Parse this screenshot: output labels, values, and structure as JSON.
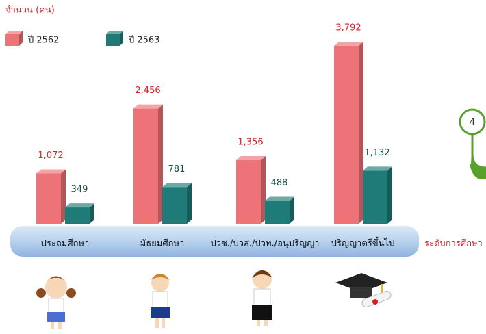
{
  "chart_data": {
    "type": "bar3d",
    "y_label": "จำนวน (คน)",
    "x_label": "ระดับการศึกษา",
    "categories": [
      "ประถมศึกษา",
      "มัธยมศึกษา",
      "ปวช./ปวส./ปวท./อนุปริญญา",
      "ปริญญาตรีขึ้นไป"
    ],
    "series": [
      {
        "name": "ปี 2562",
        "color": "#ee7378",
        "values": [
          1072,
          2456,
          1356,
          3792
        ],
        "value_labels": [
          "1,072",
          "2,456",
          "1,356",
          "3,792"
        ]
      },
      {
        "name": "ปี 2563",
        "color": "#1f7b78",
        "values": [
          349,
          781,
          488,
          1132
        ],
        "value_labels": [
          "349",
          "781",
          "488",
          "1,132"
        ]
      }
    ]
  },
  "badge": "4"
}
